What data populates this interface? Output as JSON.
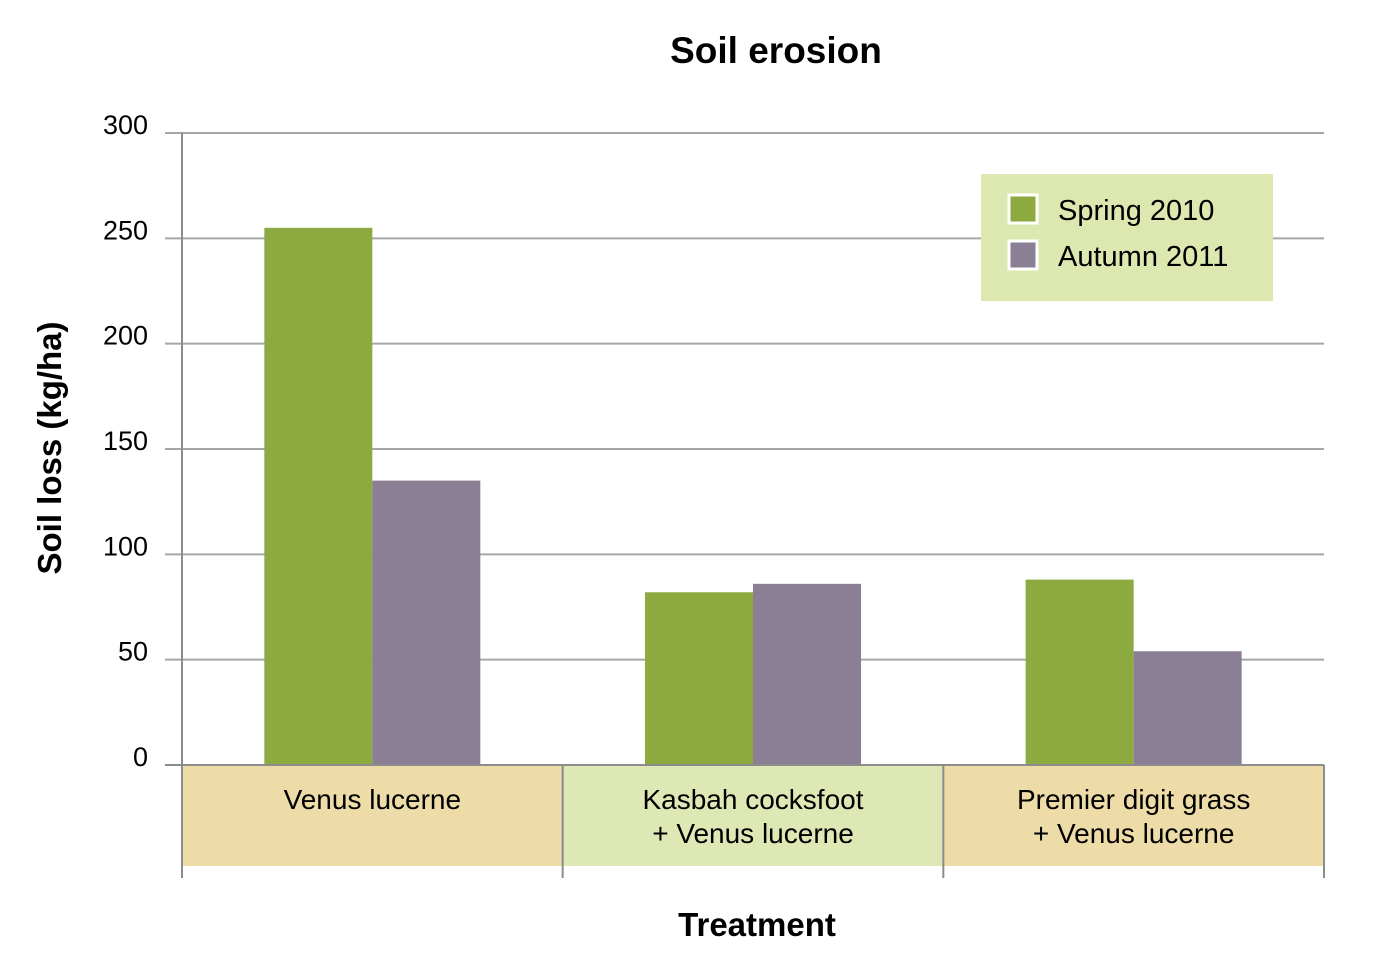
{
  "chart_data": {
    "type": "bar",
    "title": "Soil erosion",
    "xlabel": "Treatment",
    "ylabel": "Soil loss (kg/ha)",
    "ylim": [
      0,
      300
    ],
    "yticks": [
      "0",
      "50",
      "100",
      "150",
      "200",
      "250",
      "300"
    ],
    "grid": true,
    "legend_position": "top-right",
    "categories": [
      [
        "Venus lucerne"
      ],
      [
        "Kasbah cocksfoot",
        "+ Venus lucerne"
      ],
      [
        "Premier digit grass",
        "+ Venus lucerne"
      ]
    ],
    "category_colors": [
      "#EDDCA7",
      "#DDE8B4",
      "#EDDCA7"
    ],
    "series": [
      {
        "name": "Spring 2010",
        "color": "#8DAA40",
        "values": [
          255,
          82,
          88
        ]
      },
      {
        "name": "Autumn 2011",
        "color": "#8B7F96",
        "values": [
          135,
          86,
          54
        ]
      }
    ],
    "legend_background": "#DCE8B0",
    "grid_color": "#A6A6A6"
  }
}
